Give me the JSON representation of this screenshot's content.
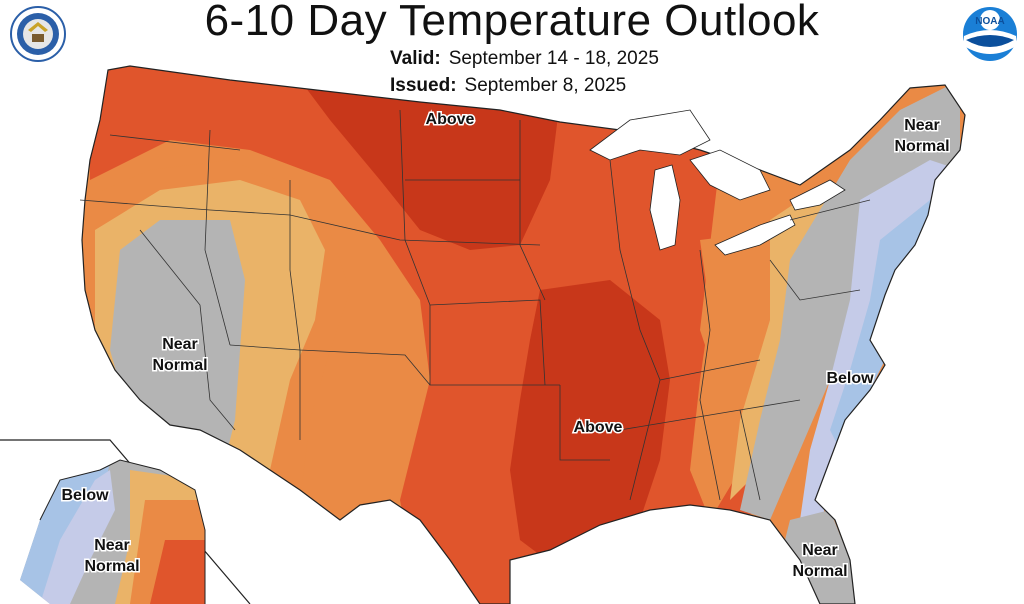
{
  "header": {
    "title": "6-10 Day Temperature Outlook",
    "valid_label": "Valid:",
    "valid_value": "September 14 - 18, 2025",
    "issued_label": "Issued:",
    "issued_value": "September 8, 2025"
  },
  "map_labels": {
    "above_north": "Above",
    "above_south": "Above",
    "near_normal_west_1": "Near",
    "near_normal_west_2": "Normal",
    "near_normal_ne_1": "Near",
    "near_normal_ne_2": "Normal",
    "below_east": "Below",
    "near_normal_fl_1": "Near",
    "near_normal_fl_2": "Normal",
    "below_alaska": "Below",
    "near_normal_ak_1": "Near",
    "near_normal_ak_2": "Normal"
  },
  "colors": {
    "above_strong": "#c8371a",
    "above_medium": "#e0552c",
    "above_light": "#ea8a45",
    "above_slight": "#eab368",
    "near_normal": "#b4b4b4",
    "below_slight": "#c5cbe8",
    "below_light": "#a7c3e6",
    "water": "#ffffff"
  },
  "icons": {
    "left_seal": "department-of-commerce-seal-icon",
    "right_seal": "noaa-logo-icon"
  }
}
